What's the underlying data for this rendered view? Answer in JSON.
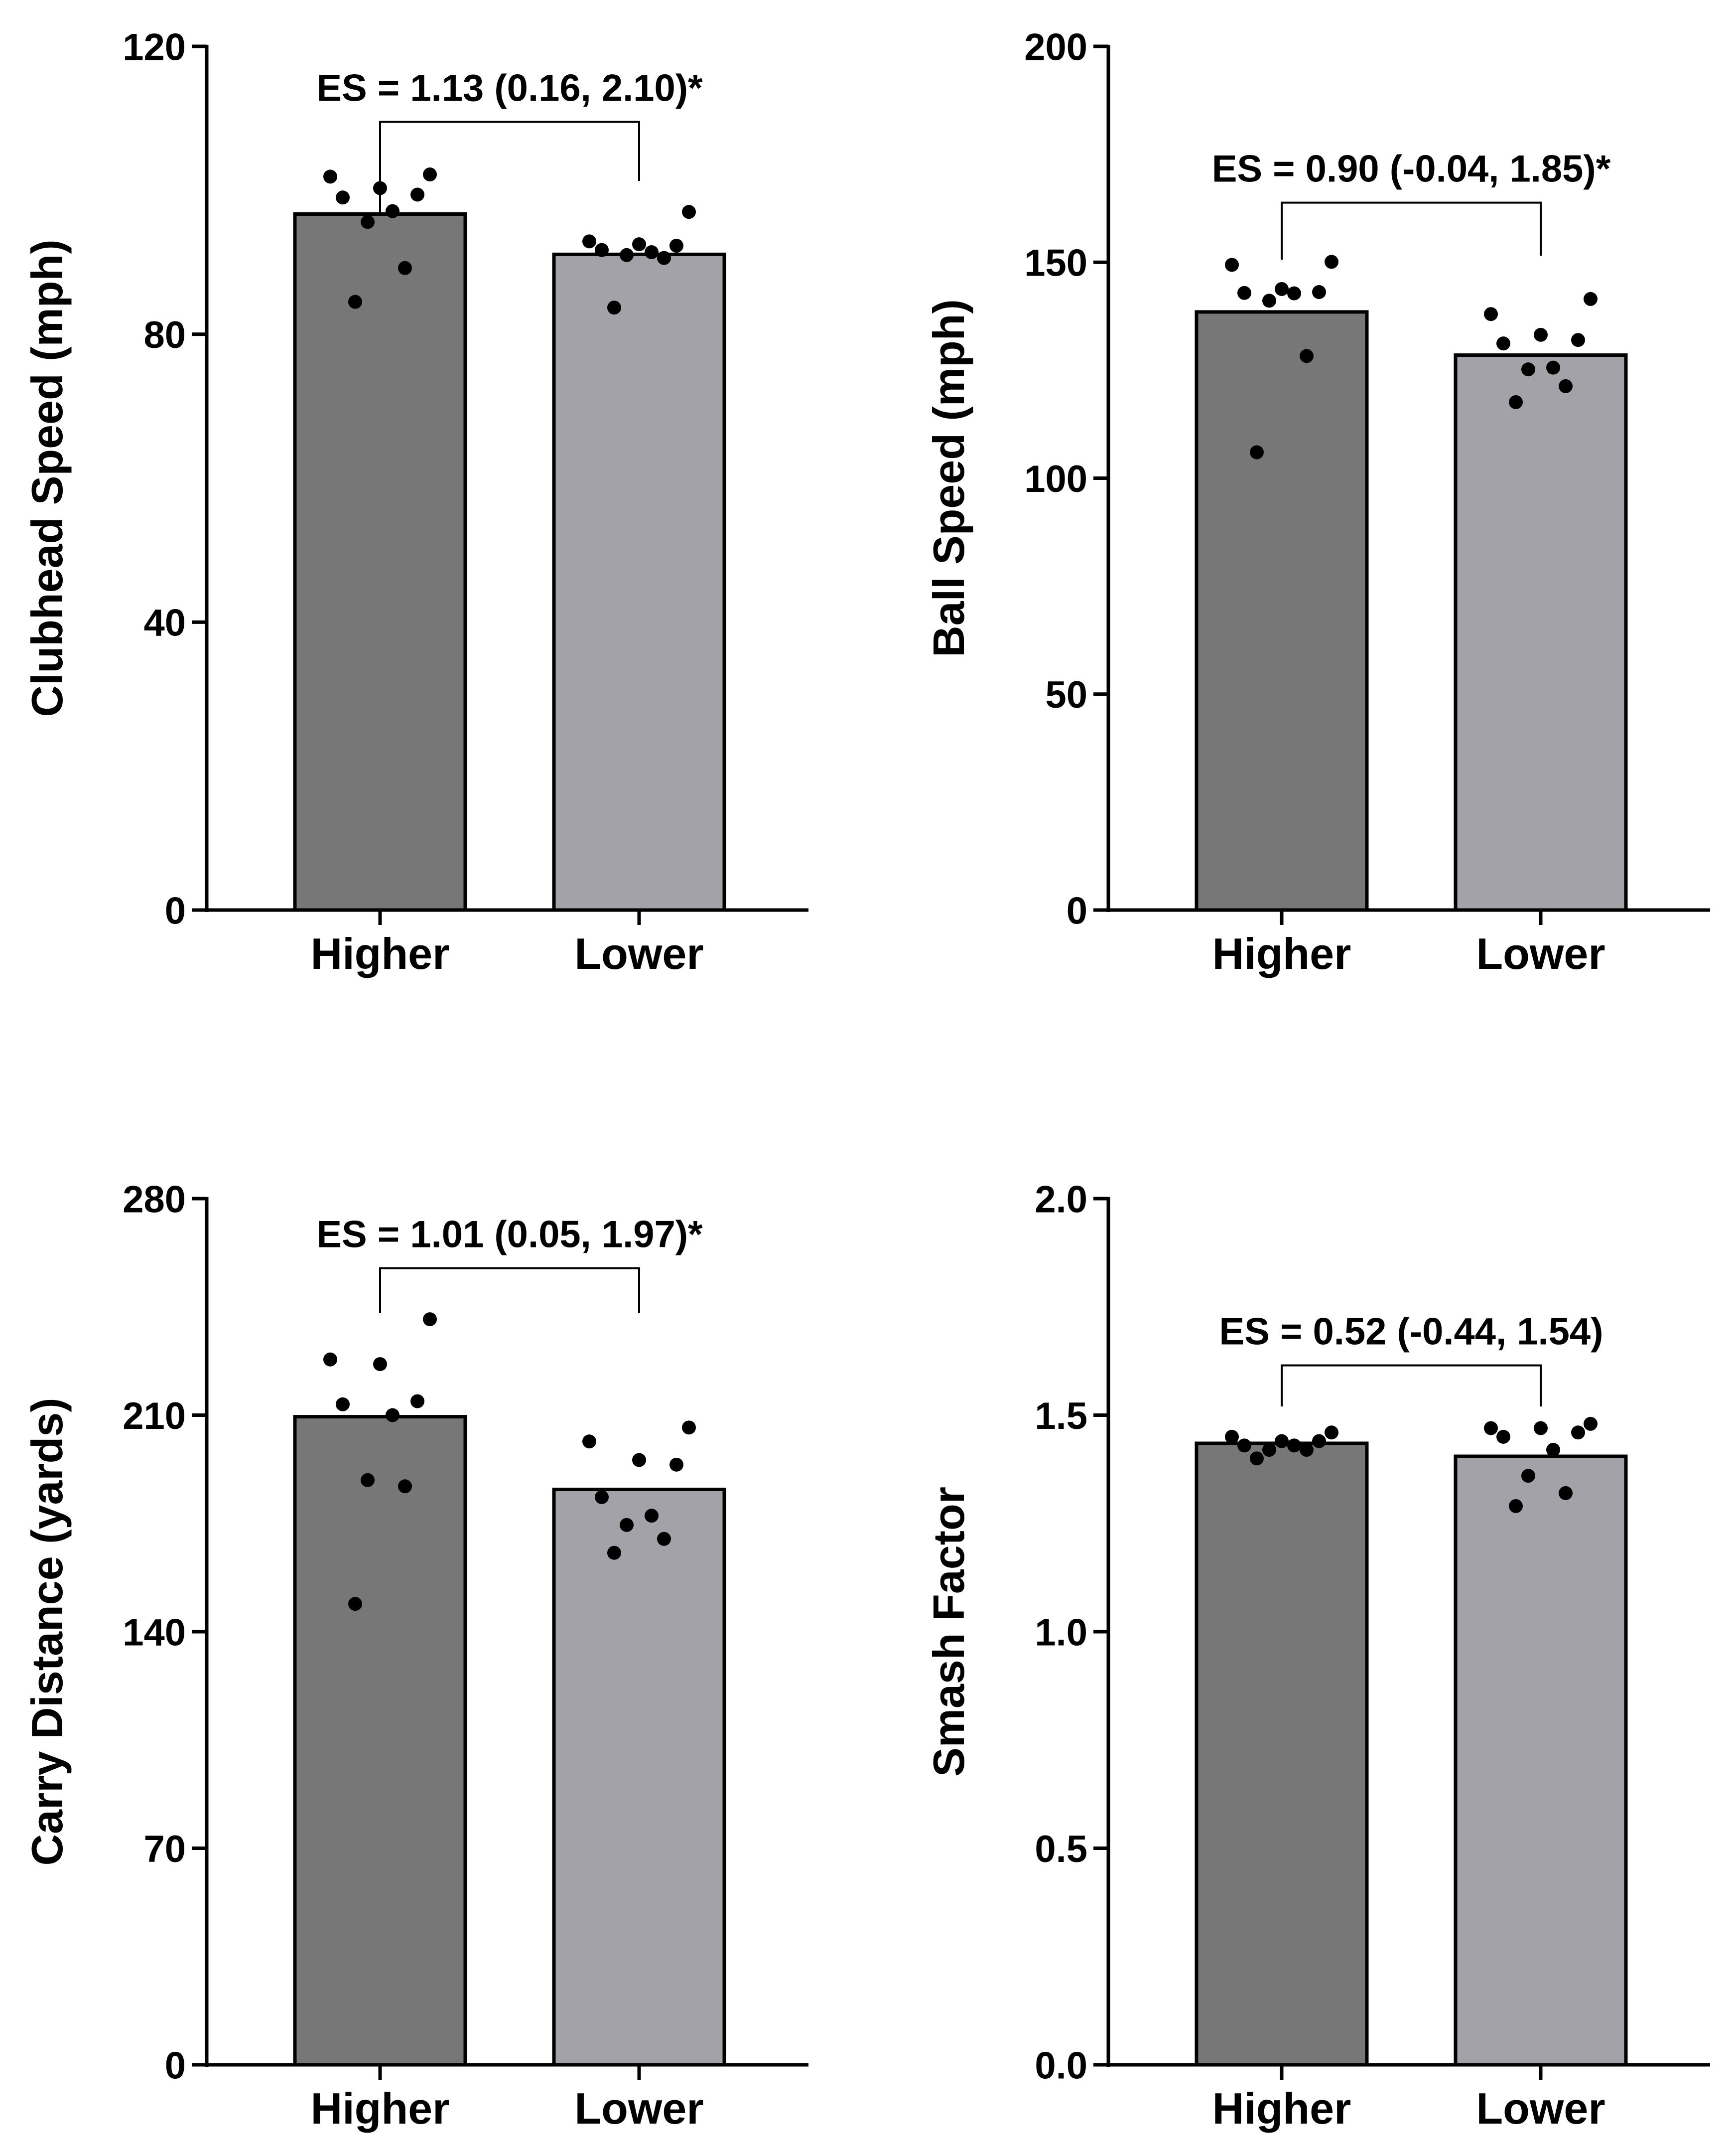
{
  "colors": {
    "higher_bar": "#777777",
    "lower_bar": "#a3a2a8",
    "ink": "#000000",
    "background": "#ffffff"
  },
  "chart_data": [
    {
      "id": "clubhead",
      "type": "bar",
      "ylabel": "Clubhead Speed (mph)",
      "ylim": [
        0,
        120
      ],
      "yticks": [
        0,
        40,
        80,
        120
      ],
      "categories": [
        "Higher",
        "Lower"
      ],
      "values": [
        96.7,
        91.1
      ],
      "points": [
        [
          84.5,
          89.2,
          95.6,
          97.1,
          99.0,
          99.4,
          100.3,
          101.9,
          102.2
        ],
        [
          83.7,
          90.6,
          91.0,
          91.4,
          91.7,
          92.3,
          92.5,
          92.9,
          97.0
        ]
      ],
      "annotation": "ES = 1.13 (0.16, 2.10)*",
      "bracket_y": 109.5,
      "bracket_drop": [
        96.7,
        101.3
      ]
    },
    {
      "id": "ball",
      "type": "bar",
      "ylabel": "Ball Speed (mph)",
      "ylim": [
        0,
        200
      ],
      "yticks": [
        0,
        50,
        100,
        150,
        200
      ],
      "categories": [
        "Higher",
        "Lower"
      ],
      "values": [
        138.5,
        128.5
      ],
      "points": [
        [
          106.0,
          128.3,
          141.1,
          142.8,
          142.9,
          143.1,
          143.8,
          149.4,
          150.1
        ],
        [
          117.6,
          121.3,
          125.2,
          125.6,
          131.2,
          132.0,
          133.2,
          138.0,
          141.5
        ]
      ],
      "annotation": "ES = 0.90 (-0.04, 1.85)*",
      "bracket_y": 163.8,
      "bracket_drop": [
        150.6,
        151.5
      ]
    },
    {
      "id": "carry",
      "type": "bar",
      "ylabel": "Carry Distance (yards)",
      "ylim": [
        0,
        280
      ],
      "yticks": [
        0,
        70,
        140,
        210,
        280
      ],
      "categories": [
        "Higher",
        "Lower"
      ],
      "values": [
        209.5,
        186.0
      ],
      "points": [
        [
          149.0,
          187.0,
          189.0,
          210.0,
          213.5,
          214.5,
          226.5,
          228.0,
          241.0
        ],
        [
          165.5,
          170.0,
          174.5,
          177.5,
          183.5,
          194.0,
          195.5,
          201.5,
          206.0
        ]
      ],
      "annotation": "ES = 1.01 (0.05, 1.97)*",
      "bracket_y": 257.5,
      "bracket_drop": [
        243.0,
        243.0
      ]
    },
    {
      "id": "smash",
      "type": "bar",
      "ylabel": "Smash Factor",
      "ylim": [
        0,
        2.0
      ],
      "yticks": [
        "0.0",
        "0.5",
        "1.0",
        "1.5",
        "2.0"
      ],
      "categories": [
        "Higher",
        "Lower"
      ],
      "values": [
        1.435,
        1.405
      ],
      "points": [
        [
          1.4,
          1.42,
          1.42,
          1.43,
          1.43,
          1.44,
          1.44,
          1.45,
          1.46
        ],
        [
          1.29,
          1.32,
          1.36,
          1.42,
          1.45,
          1.46,
          1.47,
          1.47,
          1.48
        ]
      ],
      "annotation": "ES = 0.52 (-0.44, 1.54)",
      "bracket_y": 1.615,
      "bracket_drop": [
        1.52,
        1.52
      ]
    }
  ]
}
